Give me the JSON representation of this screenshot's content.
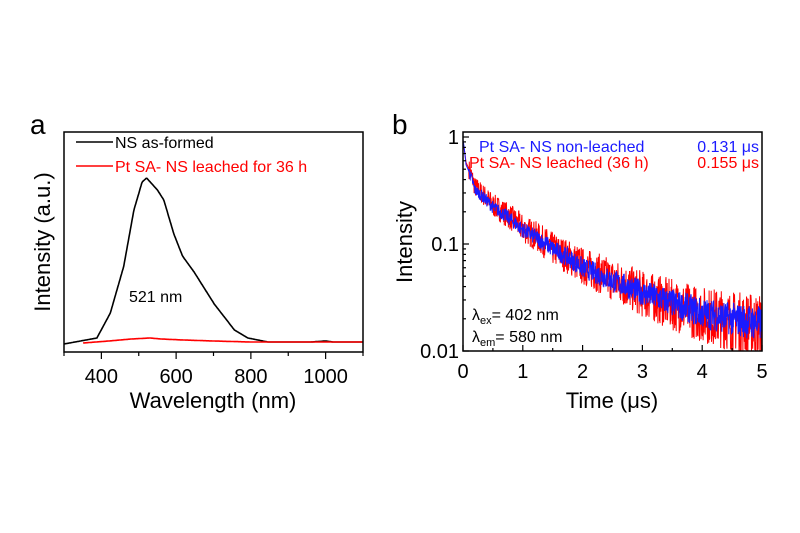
{
  "colors": {
    "black": "#000000",
    "red": "#ff0000",
    "blue": "#1a1aff"
  },
  "chart_data": [
    {
      "panel_label": "a",
      "type": "line",
      "xlabel": "Wavelength (nm)",
      "ylabel": "Intensity (a.u.)",
      "xlim": [
        300,
        1100
      ],
      "xticks": [
        400,
        600,
        800,
        1000
      ],
      "xtick_labels": [
        "400",
        "600",
        "800",
        "1000"
      ],
      "ylim": [
        0,
        1.1
      ],
      "y_tick_labels_shown": false,
      "legend_position": "top-left",
      "annotation": "521 nm",
      "series": [
        {
          "name": "NS as-formed",
          "color": "#000000",
          "x": [
            300,
            388,
            424,
            460,
            487,
            509,
            521,
            550,
            567,
            594,
            617,
            648,
            702,
            756,
            792,
            846,
            900,
            960,
            1000,
            1020,
            1100
          ],
          "y": [
            0.04,
            0.07,
            0.195,
            0.43,
            0.71,
            0.85,
            0.87,
            0.81,
            0.76,
            0.59,
            0.48,
            0.4,
            0.24,
            0.11,
            0.07,
            0.05,
            0.05,
            0.05,
            0.055,
            0.05,
            0.05
          ]
        },
        {
          "name": "Pt SA- NS leached for 36 h",
          "color": "#ff0000",
          "x": [
            351,
            420,
            480,
            530,
            560,
            620,
            700,
            800,
            900,
            1000,
            1100
          ],
          "y": [
            0.045,
            0.055,
            0.065,
            0.07,
            0.065,
            0.06,
            0.055,
            0.05,
            0.05,
            0.05,
            0.05
          ]
        }
      ]
    },
    {
      "panel_label": "b",
      "type": "line",
      "xlabel": "Time (μs)",
      "ylabel": "Intensity",
      "xlim": [
        0,
        5
      ],
      "xticks": [
        0,
        1,
        2,
        3,
        4,
        5
      ],
      "xtick_labels": [
        "0",
        "1",
        "2",
        "3",
        "4",
        "5"
      ],
      "ylim": [
        0.01,
        1.12
      ],
      "yscale": "log",
      "yticks": [
        1,
        0.1,
        0.01
      ],
      "ytick_labels": [
        "1",
        "0.1",
        "0.01"
      ],
      "legend_position": "top-right",
      "annotations": {
        "ex_symbol": "λ",
        "ex_sub": "ex",
        "ex_text": "= 402 nm",
        "em_symbol": "λ",
        "em_sub": "em",
        "em_text": "= 580 nm"
      },
      "series": [
        {
          "name": "Pt SA- NS leached (36 h)",
          "lifetime": "0.155 μs",
          "color": "#ff0000",
          "x": [
            0,
            0.05,
            0.2,
            0.5,
            1,
            1.5,
            2,
            2.5,
            3,
            3.5,
            4,
            4.5,
            5
          ],
          "y": [
            0.9,
            0.58,
            0.34,
            0.23,
            0.14,
            0.09,
            0.062,
            0.046,
            0.034,
            0.027,
            0.022,
            0.019,
            0.017
          ]
        },
        {
          "name": "Pt SA- NS non-leached",
          "lifetime": "0.131 μs",
          "color": "#1a1aff",
          "x": [
            0,
            0.05,
            0.2,
            0.5,
            1,
            1.5,
            2,
            2.5,
            3,
            3.5,
            4,
            4.5,
            5
          ],
          "y": [
            0.95,
            0.55,
            0.32,
            0.22,
            0.135,
            0.09,
            0.06,
            0.045,
            0.035,
            0.028,
            0.0226,
            0.02,
            0.018
          ]
        }
      ]
    }
  ]
}
